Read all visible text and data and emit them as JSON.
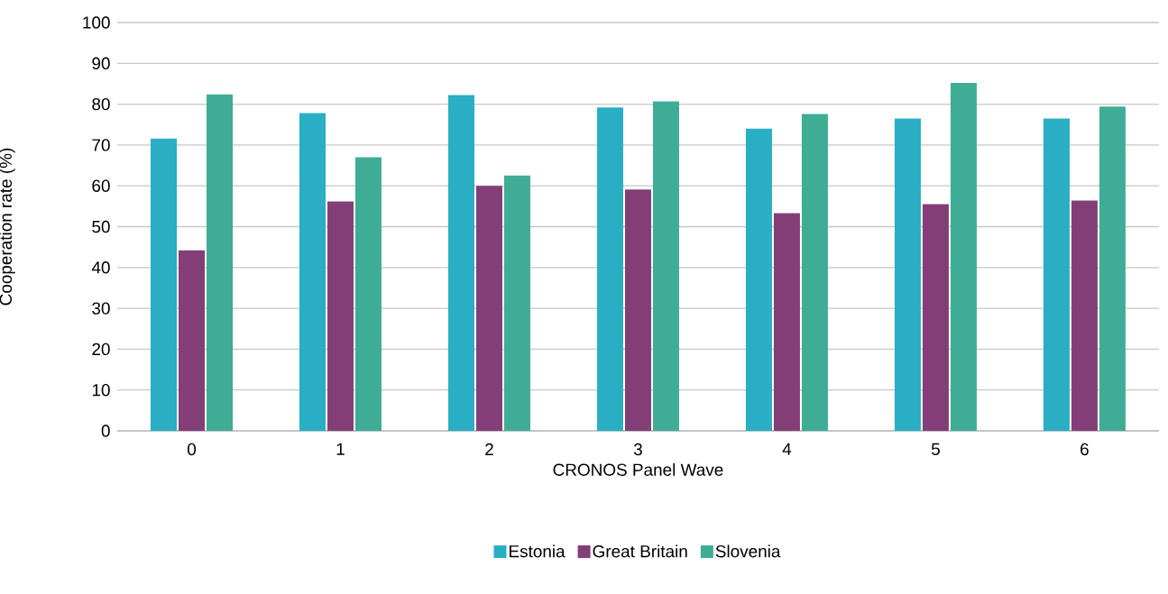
{
  "chart_data": {
    "type": "bar",
    "xlabel": "CRONOS Panel Wave",
    "ylabel": "Cooperation rate (%)",
    "categories": [
      "0",
      "1",
      "2",
      "3",
      "4",
      "5",
      "6"
    ],
    "series": [
      {
        "name": "Estonia",
        "color": "#29aec4",
        "values": [
          71.6,
          77.8,
          82.2,
          79.2,
          74.0,
          76.5,
          76.5
        ]
      },
      {
        "name": "Great Britain",
        "color": "#833e78",
        "values": [
          44.2,
          56.2,
          60.0,
          59.1,
          53.3,
          55.5,
          56.4
        ]
      },
      {
        "name": "Slovenia",
        "color": "#3fad96",
        "values": [
          82.4,
          67.0,
          62.5,
          80.7,
          77.6,
          85.2,
          79.4
        ]
      }
    ],
    "ylim": [
      0,
      100
    ],
    "yticks": [
      0,
      10,
      20,
      30,
      40,
      50,
      60,
      70,
      80,
      90,
      100
    ],
    "grid": "y",
    "legend": "bottom"
  }
}
